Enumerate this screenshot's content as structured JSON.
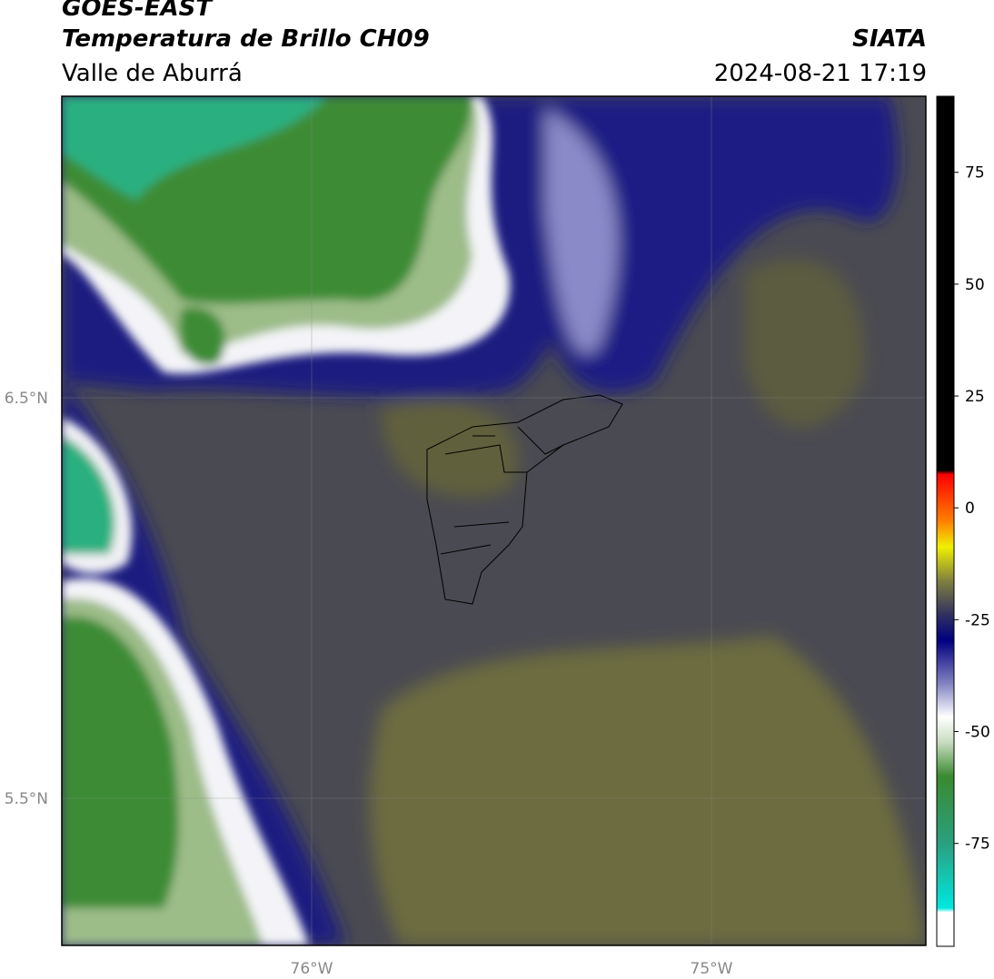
{
  "header": {
    "title": "GOES-EAST",
    "subtitle": "Temperatura de Brillo CH09",
    "region": "Valle de Aburrá",
    "source": "SIATA",
    "datetime": "2024-08-21 17:19"
  },
  "map": {
    "lat_labels": [
      "6.5°N",
      "5.5°N"
    ],
    "lon_labels": [
      "76°W",
      "75°W"
    ]
  },
  "colorbar": {
    "range": [
      -98,
      92
    ],
    "ticks": [
      75,
      50,
      25,
      0,
      -25,
      -50,
      -75
    ]
  }
}
